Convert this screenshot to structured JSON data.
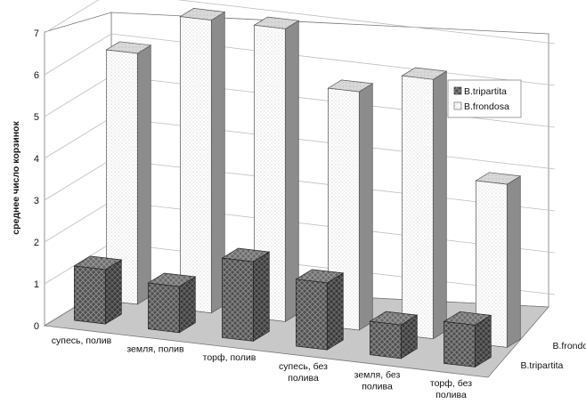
{
  "chart_data": {
    "type": "bar",
    "subtype": "3d-clustered-column",
    "ylabel": "среднее число корзинок",
    "xlabel": "",
    "ylim": [
      0,
      7
    ],
    "yticks": [
      "0",
      "1",
      "2",
      "3",
      "4",
      "5",
      "6",
      "7"
    ],
    "categories": [
      [
        "супесь, полив"
      ],
      [
        "земля, полив"
      ],
      [
        "торф, полив"
      ],
      [
        "супесь, без",
        "полива"
      ],
      [
        "земля, без",
        "полива"
      ],
      [
        "торф, без",
        "полива"
      ]
    ],
    "series": [
      {
        "name": "B.tripartita",
        "values": [
          1.3,
          1.1,
          1.9,
          1.6,
          0.8,
          1.0
        ],
        "pattern": "dark-brick"
      },
      {
        "name": "B.frondosa",
        "values": [
          6.0,
          7.0,
          7.0,
          5.7,
          6.2,
          3.9
        ],
        "pattern": "light-dots"
      }
    ],
    "depth_labels": [
      "B.frondosa",
      "B.tripartita"
    ],
    "grid": true,
    "legend_position": "top-right"
  }
}
